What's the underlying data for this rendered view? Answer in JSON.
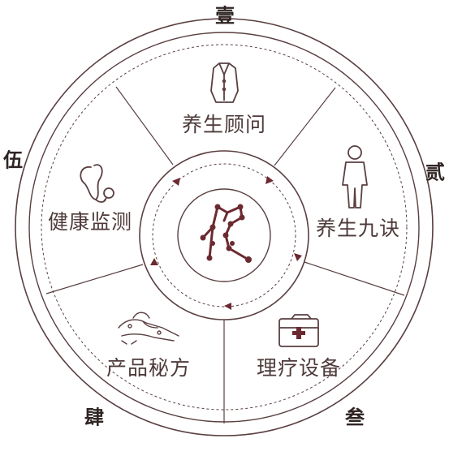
{
  "diagram": {
    "segments": [
      {
        "label": "养生顾问",
        "icon": "coat-icon"
      },
      {
        "label": "养生九诀",
        "icon": "person-icon"
      },
      {
        "label": "理疗设备",
        "icon": "medical-kit-icon"
      },
      {
        "label": "产品秘方",
        "icon": "hands-massage-icon"
      },
      {
        "label": "健康监测",
        "icon": "stethoscope-icon"
      }
    ],
    "corner_marks": [
      "壹",
      "贰",
      "叁",
      "肆",
      "伍"
    ],
    "center_icon": "meridian-figure-icon",
    "colors": {
      "line": "#5a3f40",
      "text": "#4e3a3a",
      "accent": "#6b2a30"
    }
  }
}
